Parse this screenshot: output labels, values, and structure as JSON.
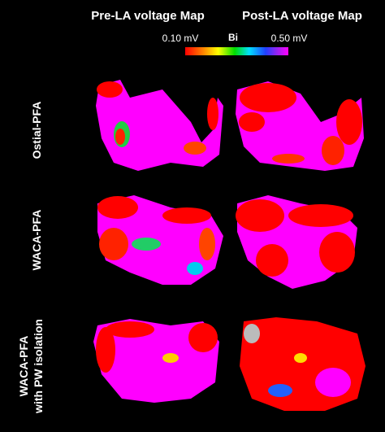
{
  "header": {
    "columns": [
      "Pre-LA voltage Map",
      "Post-LA voltage Map"
    ]
  },
  "colorbar": {
    "min_label": "0.10 mV",
    "unit_label": "Bi",
    "max_label": "0.50 mV"
  },
  "rows": [
    {
      "lines": [
        "Ostial-PFA"
      ]
    },
    {
      "lines": [
        "WACA-PFA"
      ]
    },
    {
      "lines": [
        "WACA-PFA",
        "with PW isolation"
      ]
    }
  ]
}
